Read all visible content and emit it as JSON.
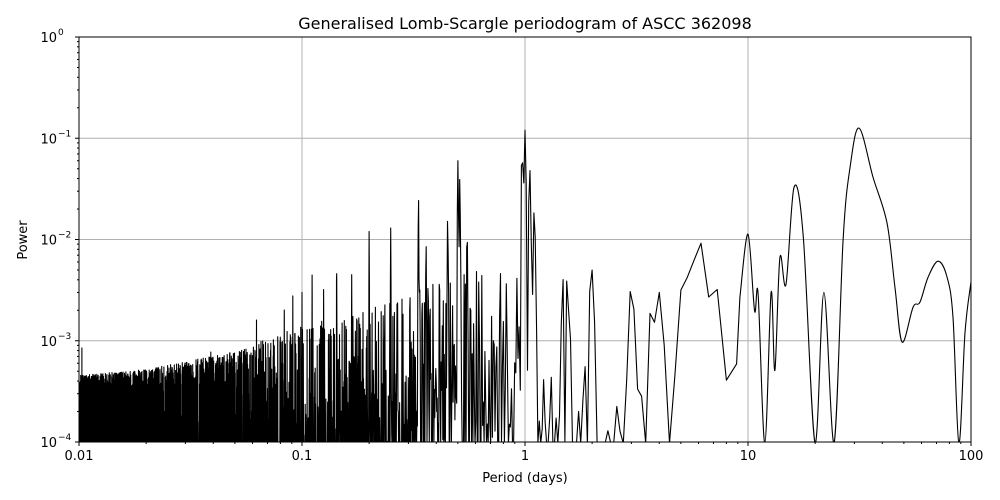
{
  "chart_data": {
    "type": "line",
    "title": "Generalised Lomb-Scargle periodogram of ASCC 362098",
    "xlabel": "Period (days)",
    "ylabel": "Power",
    "xscale": "log",
    "yscale": "log",
    "xlim": [
      0.01,
      100
    ],
    "ylim": [
      0.0001,
      1
    ],
    "grid": true,
    "line_color": "#000000",
    "grid_color": "#b0b0b0",
    "x_ticks": [
      {
        "value": 0.01,
        "label": "0.01"
      },
      {
        "value": 0.1,
        "label": "0.1"
      },
      {
        "value": 1,
        "label": "1"
      },
      {
        "value": 10,
        "label": "10"
      },
      {
        "value": 100,
        "label": "100"
      }
    ],
    "y_ticks": [
      {
        "value": 1,
        "base": "10",
        "exp": "0"
      },
      {
        "value": 0.1,
        "base": "10",
        "exp": "−1"
      },
      {
        "value": 0.01,
        "base": "10",
        "exp": "−2"
      },
      {
        "value": 0.001,
        "base": "10",
        "exp": "−3"
      },
      {
        "value": 0.0001,
        "base": "10",
        "exp": "−4"
      }
    ],
    "noise_envelope": {
      "period": [
        0.01,
        0.02,
        0.05,
        0.1,
        0.2,
        0.5,
        1.0,
        2.0,
        3.0,
        5.0,
        9.2
      ],
      "power": [
        0.00035,
        0.0004,
        0.0006,
        0.0011,
        0.0016,
        0.0035,
        0.0045,
        0.0025,
        0.0018,
        0.0015,
        0.0025
      ]
    },
    "peaks": [
      {
        "period": 0.0103,
        "power": 0.00085
      },
      {
        "period": 0.039,
        "power": 0.00085
      },
      {
        "period": 0.0625,
        "power": 0.0016
      },
      {
        "period": 0.0833,
        "power": 0.0024
      },
      {
        "period": 0.0909,
        "power": 0.0028
      },
      {
        "period": 0.1,
        "power": 0.003
      },
      {
        "period": 0.111,
        "power": 0.0049
      },
      {
        "period": 0.125,
        "power": 0.0032
      },
      {
        "period": 0.143,
        "power": 0.0058
      },
      {
        "period": 0.167,
        "power": 0.0045
      },
      {
        "period": 0.2,
        "power": 0.012
      },
      {
        "period": 0.25,
        "power": 0.013
      },
      {
        "period": 0.333,
        "power": 0.026
      },
      {
        "period": 0.36,
        "power": 0.009
      },
      {
        "period": 0.45,
        "power": 0.016
      },
      {
        "period": 0.5,
        "power": 0.06
      },
      {
        "period": 0.51,
        "power": 0.04
      },
      {
        "period": 0.55,
        "power": 0.012
      },
      {
        "period": 0.97,
        "power": 0.075
      },
      {
        "period": 1.0,
        "power": 0.12
      },
      {
        "period": 1.05,
        "power": 0.05
      },
      {
        "period": 1.1,
        "power": 0.02
      },
      {
        "period": 2.0,
        "power": 0.005
      },
      {
        "period": 3.0,
        "power": 0.0035
      },
      {
        "period": 4.0,
        "power": 0.003
      },
      {
        "period": 5.2,
        "power": 0.005
      },
      {
        "period": 6.0,
        "power": 0.0105
      },
      {
        "period": 7.0,
        "power": 0.004
      }
    ],
    "smooth_segment": {
      "period": [
        9.2,
        10.0,
        10.7,
        11.1,
        11.9,
        12.7,
        13.2,
        13.9,
        14.8,
        16.1,
        17.7,
        20.0,
        21.9,
        24.3,
        26.7,
        28.7,
        31.5,
        36.4,
        42.0,
        45.6,
        49.1,
        55.0,
        59.0,
        64.1,
        71.1,
        78.0,
        83.0,
        88.3,
        94.0,
        100
      ],
      "power": [
        0.0027,
        0.0113,
        0.00197,
        0.0029,
        5e-05,
        0.003,
        0.00051,
        0.0066,
        0.0036,
        0.033,
        0.0106,
        5e-05,
        0.003,
        5e-05,
        0.0099,
        0.052,
        0.126,
        0.041,
        0.0146,
        0.0034,
        0.00097,
        0.00215,
        0.0024,
        0.0042,
        0.0061,
        0.0043,
        0.0017,
        5e-05,
        0.0012,
        0.0038
      ]
    }
  }
}
